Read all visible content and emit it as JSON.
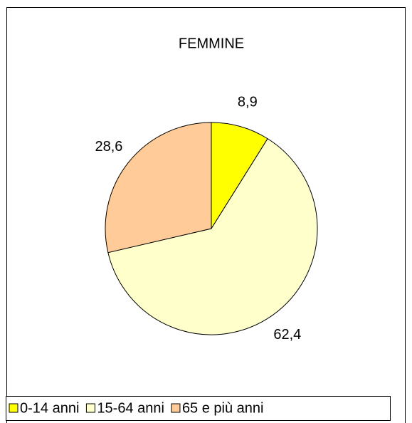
{
  "chart_data": {
    "type": "pie",
    "title": "FEMMINE",
    "categories": [
      "0-14 anni",
      "15-64 anni",
      "65 e più anni"
    ],
    "values": [
      8.9,
      62.4,
      28.6
    ],
    "value_labels": [
      "8,9",
      "62,4",
      "28,6"
    ],
    "colors": [
      "#ffff00",
      "#ffffcc",
      "#ffcc99"
    ],
    "legend": "bottom"
  }
}
